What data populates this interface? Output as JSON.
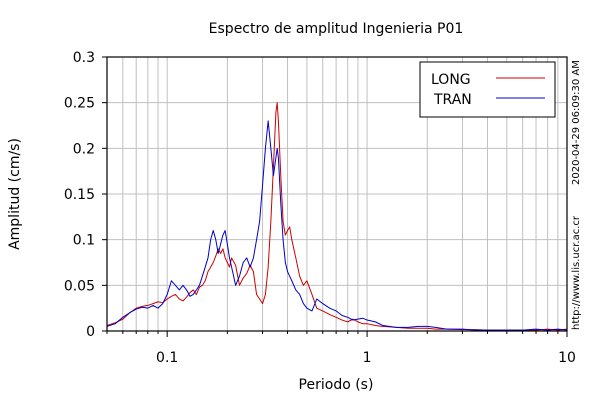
{
  "chart_data": {
    "type": "line",
    "title": "Espectro de amplitud Ingenieria P01",
    "xlabel": "Periodo (s)",
    "ylabel": "Amplitud (cm/s)",
    "x_scale": "log",
    "xlim": [
      0.05,
      10
    ],
    "ylim": [
      0,
      0.3
    ],
    "grid": true,
    "legend_position": "top-right",
    "x_ticks": [
      {
        "value": 0.1,
        "label": "0.1"
      },
      {
        "value": 1,
        "label": "1"
      },
      {
        "value": 10,
        "label": "10"
      }
    ],
    "y_ticks": [
      {
        "value": 0,
        "label": "0"
      },
      {
        "value": 0.05,
        "label": "0.05"
      },
      {
        "value": 0.1,
        "label": "0.1"
      },
      {
        "value": 0.15,
        "label": "0.15"
      },
      {
        "value": 0.2,
        "label": "0.2"
      },
      {
        "value": 0.25,
        "label": "0.25"
      },
      {
        "value": 0.3,
        "label": "0.3"
      }
    ],
    "series": [
      {
        "name": "LONG",
        "color": "#cc0000",
        "x": [
          0.05,
          0.055,
          0.06,
          0.065,
          0.07,
          0.075,
          0.08,
          0.085,
          0.09,
          0.095,
          0.1,
          0.105,
          0.11,
          0.115,
          0.12,
          0.125,
          0.13,
          0.135,
          0.14,
          0.145,
          0.15,
          0.155,
          0.16,
          0.165,
          0.17,
          0.175,
          0.18,
          0.185,
          0.19,
          0.195,
          0.2,
          0.205,
          0.21,
          0.22,
          0.23,
          0.24,
          0.25,
          0.26,
          0.27,
          0.28,
          0.29,
          0.3,
          0.31,
          0.32,
          0.33,
          0.34,
          0.35,
          0.355,
          0.36,
          0.37,
          0.38,
          0.39,
          0.4,
          0.41,
          0.42,
          0.44,
          0.46,
          0.48,
          0.5,
          0.53,
          0.56,
          0.6,
          0.65,
          0.7,
          0.75,
          0.8,
          0.85,
          0.9,
          0.95,
          1.0,
          1.1,
          1.2,
          1.4,
          1.6,
          1.8,
          2.0,
          2.2,
          2.5,
          3.0,
          3.5,
          4.0,
          5.0,
          6.0,
          7.0,
          8.0,
          9.0,
          10.0
        ],
        "y": [
          0.006,
          0.009,
          0.013,
          0.02,
          0.025,
          0.027,
          0.028,
          0.03,
          0.032,
          0.031,
          0.035,
          0.038,
          0.04,
          0.035,
          0.033,
          0.037,
          0.042,
          0.045,
          0.04,
          0.048,
          0.05,
          0.055,
          0.065,
          0.07,
          0.075,
          0.082,
          0.09,
          0.085,
          0.09,
          0.08,
          0.075,
          0.07,
          0.08,
          0.072,
          0.05,
          0.058,
          0.063,
          0.072,
          0.065,
          0.04,
          0.035,
          0.03,
          0.04,
          0.07,
          0.12,
          0.18,
          0.24,
          0.25,
          0.23,
          0.17,
          0.12,
          0.105,
          0.11,
          0.114,
          0.1,
          0.08,
          0.06,
          0.05,
          0.055,
          0.04,
          0.025,
          0.022,
          0.018,
          0.015,
          0.012,
          0.01,
          0.013,
          0.01,
          0.008,
          0.008,
          0.006,
          0.005,
          0.004,
          0.003,
          0.003,
          0.003,
          0.002,
          0.002,
          0.0015,
          0.0015,
          0.001,
          0.001,
          0.001,
          0.001,
          0.002,
          0.001,
          0.002
        ]
      },
      {
        "name": "TRAN",
        "color": "#0000cc",
        "x": [
          0.05,
          0.055,
          0.06,
          0.065,
          0.07,
          0.075,
          0.08,
          0.085,
          0.09,
          0.095,
          0.1,
          0.105,
          0.11,
          0.115,
          0.12,
          0.125,
          0.13,
          0.135,
          0.14,
          0.145,
          0.15,
          0.155,
          0.16,
          0.165,
          0.17,
          0.175,
          0.18,
          0.185,
          0.19,
          0.195,
          0.2,
          0.205,
          0.21,
          0.22,
          0.23,
          0.24,
          0.25,
          0.26,
          0.27,
          0.28,
          0.29,
          0.3,
          0.31,
          0.32,
          0.33,
          0.34,
          0.35,
          0.355,
          0.36,
          0.37,
          0.38,
          0.39,
          0.4,
          0.41,
          0.42,
          0.44,
          0.46,
          0.48,
          0.5,
          0.53,
          0.56,
          0.6,
          0.65,
          0.7,
          0.75,
          0.8,
          0.85,
          0.9,
          0.95,
          1.0,
          1.1,
          1.2,
          1.4,
          1.6,
          1.8,
          2.0,
          2.2,
          2.5,
          3.0,
          3.5,
          4.0,
          5.0,
          6.0,
          7.0,
          8.0,
          9.0,
          10.0
        ],
        "y": [
          0.005,
          0.008,
          0.015,
          0.02,
          0.024,
          0.026,
          0.025,
          0.028,
          0.025,
          0.03,
          0.04,
          0.055,
          0.05,
          0.045,
          0.05,
          0.045,
          0.038,
          0.04,
          0.045,
          0.05,
          0.06,
          0.07,
          0.08,
          0.1,
          0.11,
          0.1,
          0.085,
          0.095,
          0.105,
          0.11,
          0.095,
          0.08,
          0.07,
          0.05,
          0.06,
          0.075,
          0.08,
          0.07,
          0.08,
          0.1,
          0.12,
          0.16,
          0.2,
          0.23,
          0.2,
          0.17,
          0.19,
          0.2,
          0.19,
          0.14,
          0.1,
          0.075,
          0.065,
          0.06,
          0.055,
          0.045,
          0.04,
          0.03,
          0.025,
          0.022,
          0.035,
          0.03,
          0.025,
          0.022,
          0.017,
          0.015,
          0.012,
          0.013,
          0.014,
          0.012,
          0.01,
          0.006,
          0.004,
          0.004,
          0.005,
          0.005,
          0.004,
          0.002,
          0.002,
          0.001,
          0.001,
          0.001,
          0.001,
          0.002,
          0.001,
          0.002,
          0.001
        ]
      }
    ],
    "side_annotations": [
      "2020-04-29 06:09:30 AM",
      "http://www.lis.ucr.ac.cr"
    ]
  }
}
